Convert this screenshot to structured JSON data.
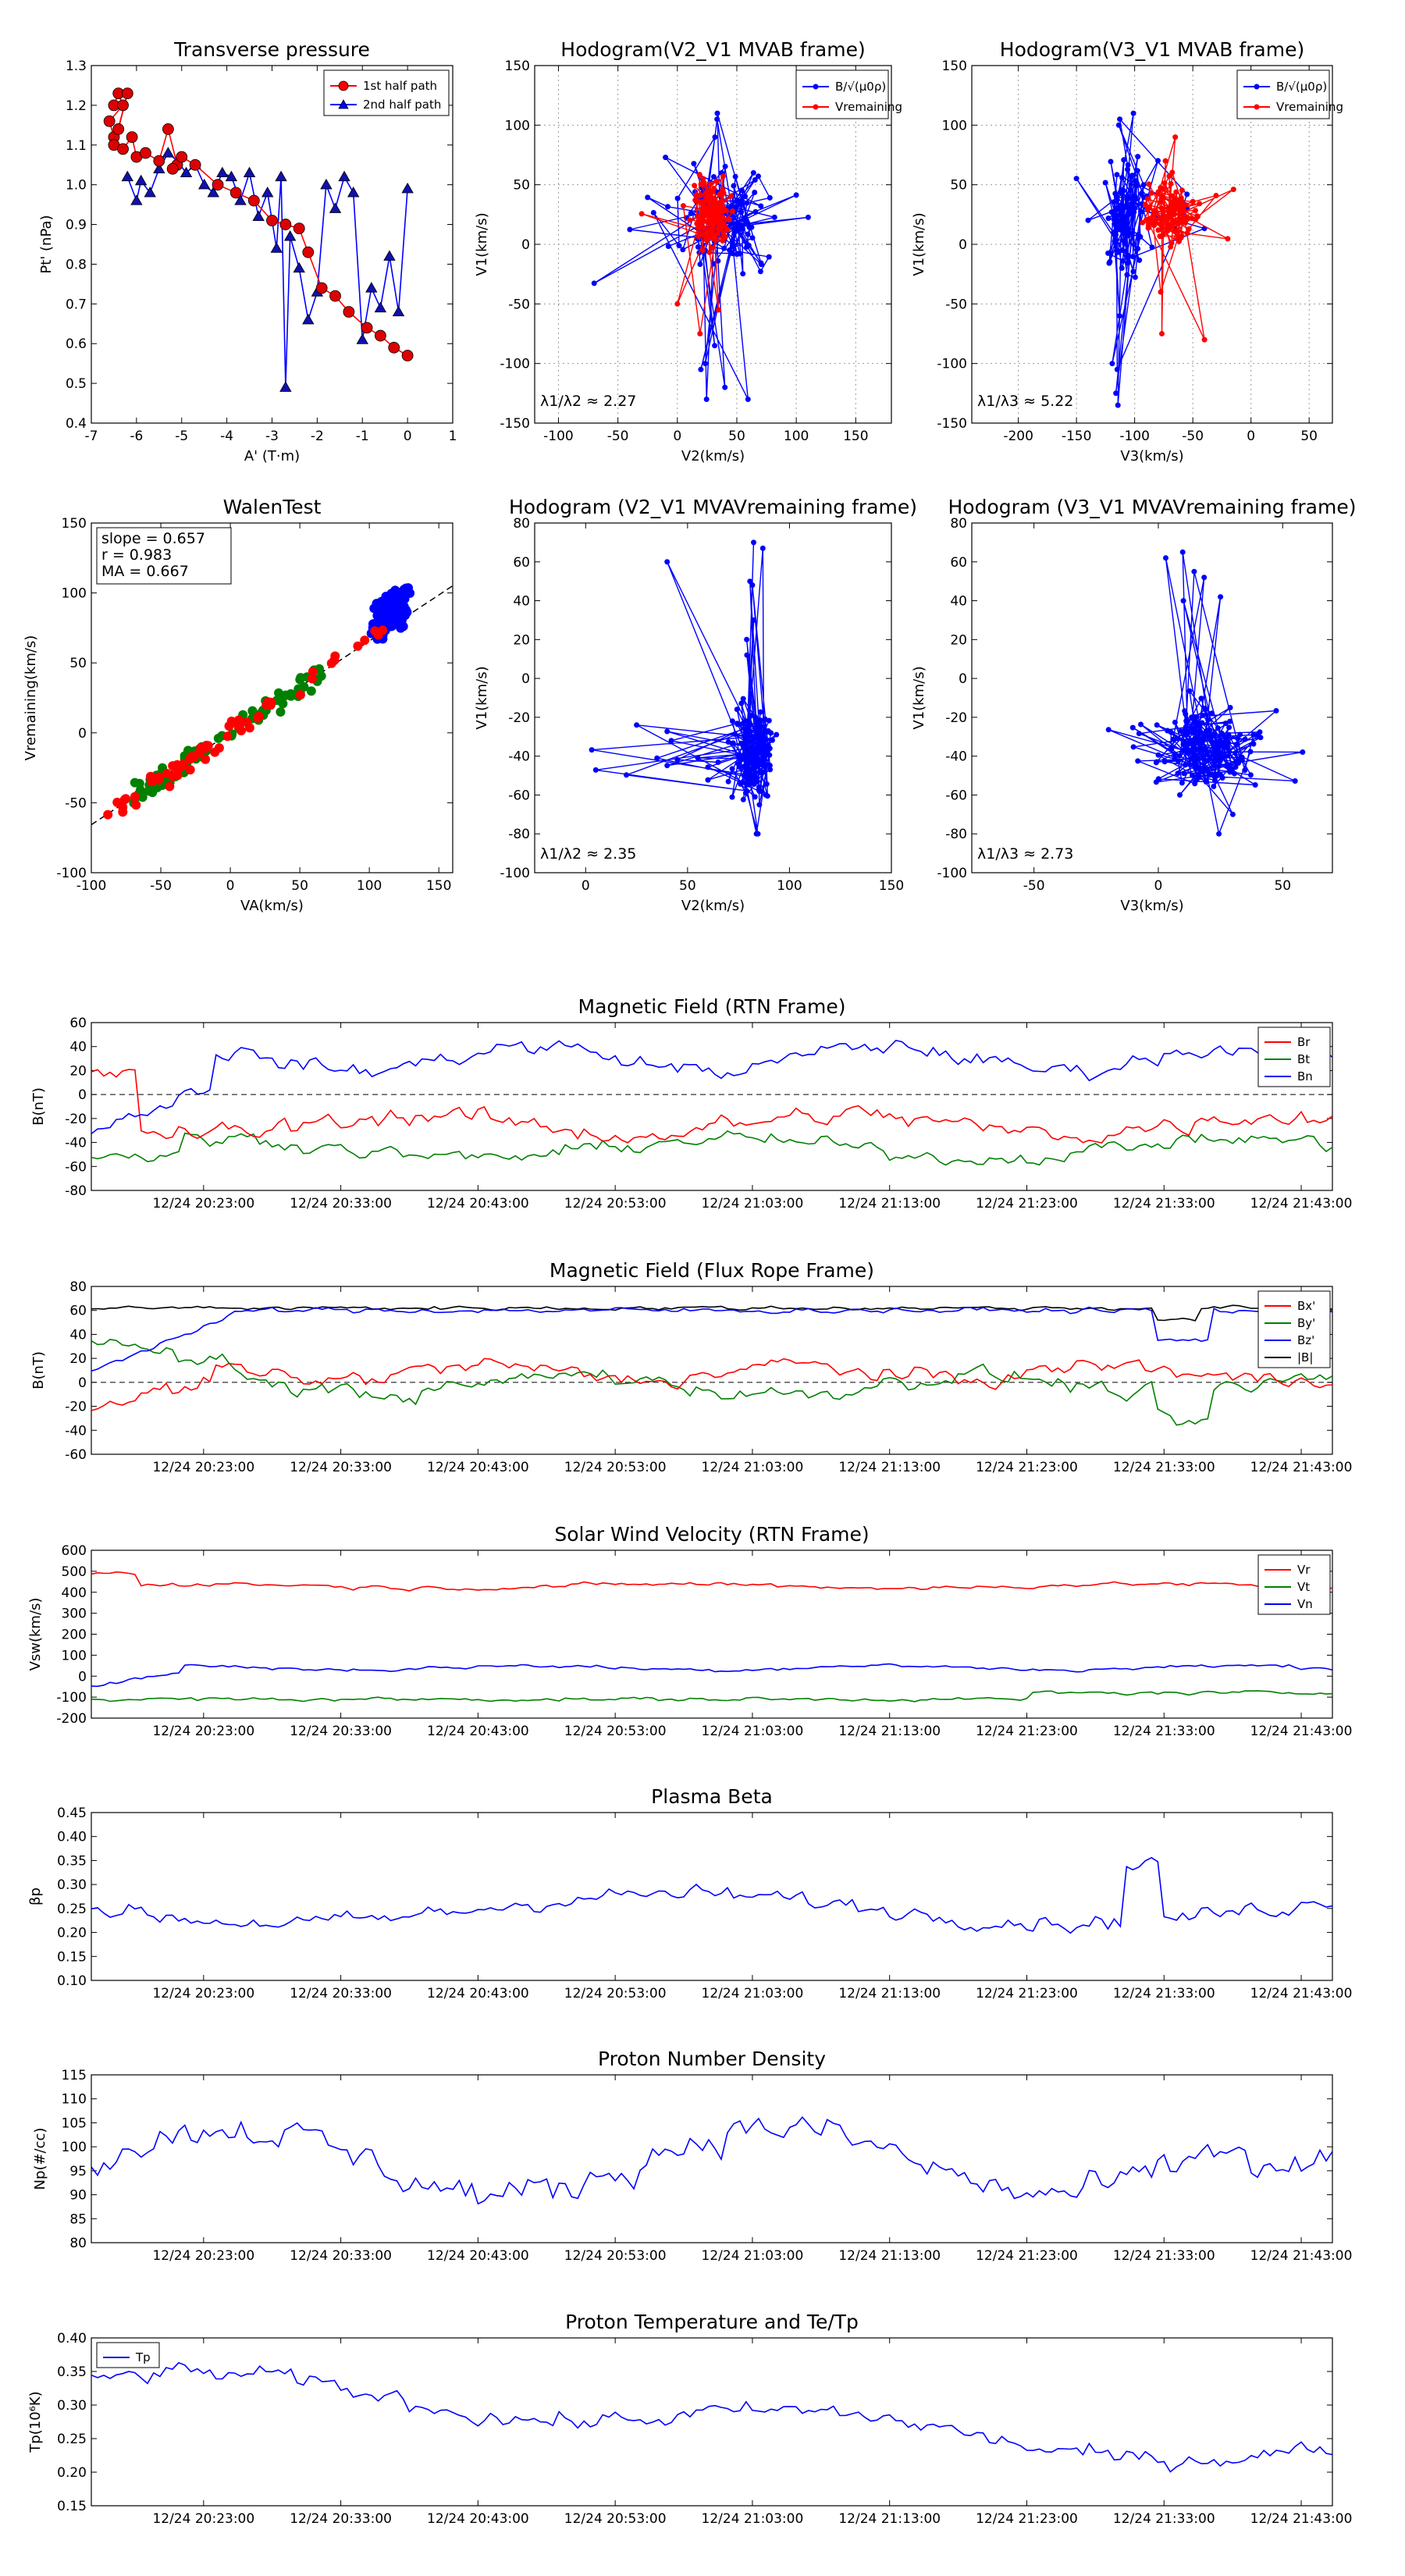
{
  "colors": {
    "red": "#ff0000",
    "blue": "#0000ff",
    "green": "#008000",
    "black": "#000000",
    "marker_red": "#dd0000",
    "marker_blue": "#1010b0"
  },
  "time_ticks": [
    "12/24 20:23:00",
    "12/24 20:33:00",
    "12/24 20:43:00",
    "12/24 20:53:00",
    "12/24 21:03:00",
    "12/24 21:13:00",
    "12/24 21:23:00",
    "12/24 21:33:00",
    "12/24 21:43:00"
  ],
  "chart_data": [
    {
      "id": "transverse",
      "type": "line",
      "title": "Transverse pressure",
      "xlabel": "A' (T·m)",
      "ylabel": "Pt' (nPa)",
      "xlim": [
        -7,
        1
      ],
      "ylim": [
        0.4,
        1.3
      ],
      "xticks": [
        -7,
        -6,
        -5,
        -4,
        -3,
        -2,
        -1,
        0,
        1
      ],
      "yticks": [
        0.4,
        0.5,
        0.6,
        0.7,
        0.8,
        0.9,
        1.0,
        1.1,
        1.2,
        1.3
      ],
      "legend": [
        "1st half path",
        "2nd half path"
      ],
      "series": [
        {
          "name": "1st half path",
          "x": [
            -6.5,
            -6.4,
            -6.3,
            -6.6,
            -6.5,
            -6.4,
            -6.2,
            -6.5,
            -6.3,
            -6.1,
            -6.0,
            -5.8,
            -5.5,
            -5.3,
            -5.1,
            -5.2,
            -5.0,
            -4.7,
            -4.2,
            -3.8,
            -3.4,
            -3.0,
            -2.7,
            -2.4,
            -2.2,
            -1.9,
            -1.6,
            -1.3,
            -0.9,
            -0.6,
            -0.3,
            0.0
          ],
          "y": [
            1.2,
            1.23,
            1.2,
            1.16,
            1.12,
            1.14,
            1.23,
            1.1,
            1.09,
            1.12,
            1.07,
            1.08,
            1.06,
            1.14,
            1.05,
            1.04,
            1.07,
            1.05,
            1.0,
            0.98,
            0.96,
            0.91,
            0.9,
            0.89,
            0.83,
            0.74,
            0.72,
            0.68,
            0.64,
            0.62,
            0.59,
            0.57
          ]
        },
        {
          "name": "2nd half path",
          "x": [
            -6.2,
            -6.0,
            -5.9,
            -5.7,
            -5.5,
            -5.3,
            -5.1,
            -4.9,
            -4.7,
            -4.5,
            -4.3,
            -4.1,
            -3.9,
            -3.7,
            -3.5,
            -3.3,
            -3.1,
            -2.9,
            -2.8,
            -2.7,
            -2.6,
            -2.4,
            -2.2,
            -2.0,
            -1.8,
            -1.6,
            -1.4,
            -1.2,
            -1.0,
            -0.8,
            -0.6,
            -0.4,
            -0.2,
            0.0
          ],
          "y": [
            1.02,
            0.96,
            1.01,
            0.98,
            1.04,
            1.08,
            1.06,
            1.03,
            1.05,
            1.0,
            0.98,
            1.03,
            1.02,
            0.96,
            1.03,
            0.92,
            0.98,
            0.84,
            1.02,
            0.49,
            0.87,
            0.79,
            0.66,
            0.73,
            1.0,
            0.94,
            1.02,
            0.98,
            0.61,
            0.74,
            0.69,
            0.82,
            0.68,
            0.99
          ]
        }
      ]
    },
    {
      "id": "hodo1",
      "type": "scatter",
      "title": "Hodogram(V2_V1 MVAB frame)",
      "xlabel": "V2(km/s)",
      "ylabel": "V1(km/s)",
      "xlim": [
        -120,
        180
      ],
      "ylim": [
        -150,
        150
      ],
      "xticks": [
        -100,
        -50,
        0,
        50,
        100,
        150
      ],
      "yticks": [
        -150,
        -100,
        -50,
        0,
        50,
        100,
        150
      ],
      "annotation": "λ1/λ2 ≈ 2.27",
      "legend": [
        "B/√(μ0ρ)",
        "Vremaining"
      ]
    },
    {
      "id": "hodo2",
      "type": "scatter",
      "title": "Hodogram(V3_V1 MVAB frame)",
      "xlabel": "V3(km/s)",
      "ylabel": "V1(km/s)",
      "xlim": [
        -240,
        70
      ],
      "ylim": [
        -150,
        150
      ],
      "xticks": [
        -200,
        -150,
        -100,
        -50,
        0,
        50
      ],
      "yticks": [
        -150,
        -100,
        -50,
        0,
        50,
        100,
        150
      ],
      "annotation": "λ1/λ3 ≈ 5.22",
      "legend": [
        "B/√(μ0ρ)",
        "Vremaining"
      ]
    },
    {
      "id": "walen",
      "type": "scatter",
      "title": "WalenTest",
      "xlabel": "VA(km/s)",
      "ylabel": "Vremaining(km/s)",
      "xlim": [
        -100,
        160
      ],
      "ylim": [
        -100,
        150
      ],
      "xticks": [
        -100,
        -50,
        0,
        50,
        100,
        150
      ],
      "yticks": [
        -100,
        -50,
        0,
        50,
        100,
        150
      ],
      "stats": [
        "slope = 0.657",
        "r = 0.983",
        "MA = 0.667"
      ],
      "slope": 0.657
    },
    {
      "id": "hodo3",
      "type": "scatter",
      "title": "Hodogram (V2_V1 MVAVremaining frame)",
      "xlabel": "V2(km/s)",
      "ylabel": "V1(km/s)",
      "xlim": [
        -25,
        150
      ],
      "ylim": [
        -100,
        80
      ],
      "xticks": [
        0,
        50,
        100,
        150
      ],
      "yticks": [
        -100,
        -80,
        -60,
        -40,
        -20,
        0,
        20,
        40,
        60,
        80
      ],
      "annotation": "λ1/λ2 ≈ 2.35"
    },
    {
      "id": "hodo4",
      "type": "scatter",
      "title": "Hodogram (V3_V1 MVAVremaining frame)",
      "xlabel": "V3(km/s)",
      "ylabel": "V1(km/s)",
      "xlim": [
        -75,
        70
      ],
      "ylim": [
        -100,
        80
      ],
      "xticks": [
        -50,
        0,
        50
      ],
      "yticks": [
        -100,
        -80,
        -60,
        -40,
        -20,
        0,
        20,
        40,
        60,
        80
      ],
      "annotation": "λ1/λ3 ≈ 2.73"
    },
    {
      "id": "bmag",
      "type": "line",
      "title": "Magnetic Field (RTN Frame)",
      "ylabel": "B(nT)",
      "ylim": [
        -80,
        60
      ],
      "yticks": [
        -80,
        -60,
        -40,
        -20,
        0,
        20,
        40,
        60
      ],
      "zero_line": true,
      "legend": [
        "Br",
        "Bt",
        "Bn"
      ]
    },
    {
      "id": "bflux",
      "type": "line",
      "title": "Magnetic Field (Flux Rope Frame)",
      "ylabel": "B(nT)",
      "ylim": [
        -60,
        80
      ],
      "yticks": [
        -60,
        -40,
        -20,
        0,
        20,
        40,
        60,
        80
      ],
      "zero_line": true,
      "legend": [
        "Bx'",
        "By'",
        "Bz'",
        "|B|"
      ]
    },
    {
      "id": "vsw",
      "type": "line",
      "title": "Solar Wind Velocity (RTN Frame)",
      "ylabel": "Vsw(km/s)",
      "ylim": [
        -200,
        600
      ],
      "yticks": [
        -200,
        -100,
        0,
        100,
        200,
        300,
        400,
        500,
        600
      ],
      "legend": [
        "Vr",
        "Vt",
        "Vn"
      ]
    },
    {
      "id": "beta",
      "type": "line",
      "title": "Plasma Beta",
      "ylabel": "βp",
      "ylim": [
        0.1,
        0.45
      ],
      "yticks": [
        0.1,
        0.15,
        0.2,
        0.25,
        0.3,
        0.35,
        0.4,
        0.45
      ]
    },
    {
      "id": "np",
      "type": "line",
      "title": "Proton Number Density",
      "ylabel": "Np(#/cc)",
      "ylim": [
        80,
        115
      ],
      "yticks": [
        80,
        85,
        90,
        95,
        100,
        105,
        110,
        115
      ]
    },
    {
      "id": "tp",
      "type": "line",
      "title": "Proton Temperature and Te/Tp",
      "ylabel": "Tp(10⁶K)",
      "ylim": [
        0.15,
        0.4
      ],
      "yticks": [
        0.15,
        0.2,
        0.25,
        0.3,
        0.35,
        0.4
      ],
      "legend": [
        "Tp"
      ]
    }
  ]
}
